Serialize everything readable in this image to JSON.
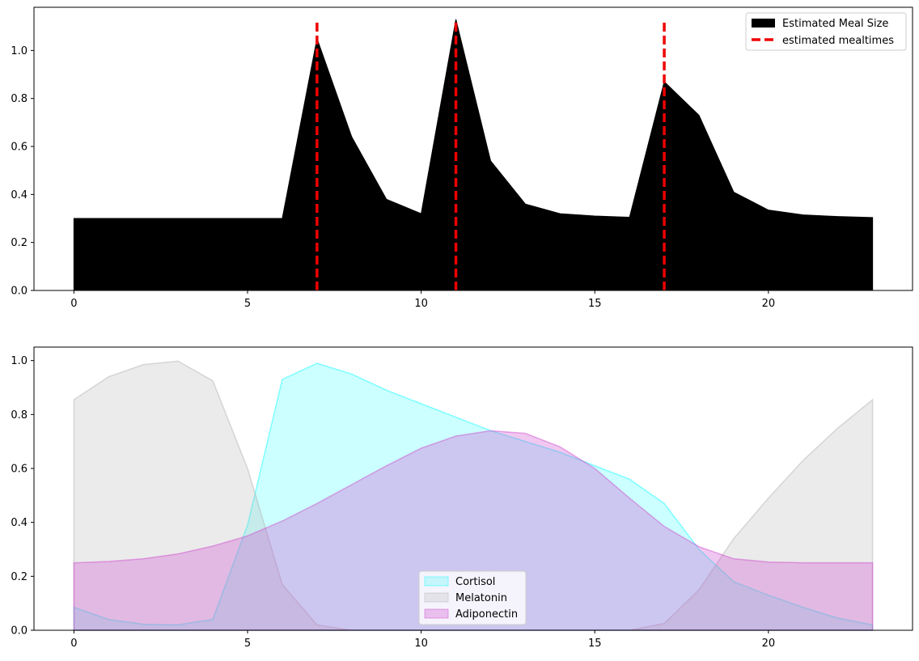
{
  "chart_data": [
    {
      "type": "area",
      "title": "",
      "xlabel": "",
      "ylabel": "",
      "xlim": [
        -1.15,
        24.15
      ],
      "ylim": [
        0,
        1.18
      ],
      "xticks": [
        0,
        5,
        10,
        15,
        20
      ],
      "yticks": [
        0.0,
        0.2,
        0.4,
        0.6,
        0.8,
        1.0
      ],
      "xtick_labels": [
        "0",
        "5",
        "10",
        "15",
        "20"
      ],
      "ytick_labels": [
        "0.0",
        "0.2",
        "0.4",
        "0.6",
        "0.8",
        "1.0"
      ],
      "legend_position": "top-right",
      "series": [
        {
          "name": "Estimated Meal Size",
          "color": "#000000",
          "x": [
            0,
            1,
            2,
            3,
            4,
            5,
            6,
            7,
            8,
            9,
            10,
            11,
            12,
            13,
            14,
            15,
            16,
            17,
            18,
            19,
            20,
            21,
            22,
            23
          ],
          "values": [
            0.3,
            0.3,
            0.3,
            0.3,
            0.3,
            0.3,
            0.3,
            1.05,
            0.64,
            0.38,
            0.32,
            1.13,
            0.54,
            0.36,
            0.32,
            0.31,
            0.305,
            0.87,
            0.73,
            0.41,
            0.335,
            0.315,
            0.308,
            0.304
          ]
        }
      ],
      "vlines": {
        "name": "estimated mealtimes",
        "color": "#ee0000",
        "style": "dashed",
        "x": [
          7,
          11,
          17
        ],
        "ymax": 1.12
      }
    },
    {
      "type": "area",
      "title": "",
      "xlabel": "",
      "ylabel": "",
      "xlim": [
        -1.15,
        24.15
      ],
      "ylim": [
        0,
        1.05
      ],
      "xticks": [
        0,
        5,
        10,
        15,
        20
      ],
      "yticks": [
        0.0,
        0.2,
        0.4,
        0.6,
        0.8,
        1.0
      ],
      "xtick_labels": [
        "0",
        "5",
        "10",
        "15",
        "20"
      ],
      "ytick_labels": [
        "0.0",
        "0.2",
        "0.4",
        "0.6",
        "0.8",
        "1.0"
      ],
      "legend_position": "lower-center",
      "series": [
        {
          "name": "Cortisol",
          "color": "#00ffff",
          "x": [
            0,
            1,
            2,
            3,
            4,
            5,
            6,
            7,
            8,
            9,
            10,
            11,
            12,
            13,
            14,
            15,
            16,
            17,
            18,
            19,
            20,
            21,
            22,
            23
          ],
          "values": [
            0.085,
            0.04,
            0.022,
            0.02,
            0.04,
            0.39,
            0.93,
            0.99,
            0.95,
            0.89,
            0.84,
            0.79,
            0.74,
            0.7,
            0.66,
            0.61,
            0.56,
            0.47,
            0.3,
            0.18,
            0.13,
            0.085,
            0.045,
            0.02
          ]
        },
        {
          "name": "Melatonin",
          "color": "#b0b0b0",
          "x": [
            0,
            1,
            2,
            3,
            4,
            5,
            6,
            7,
            8,
            9,
            10,
            11,
            12,
            13,
            14,
            15,
            16,
            17,
            18,
            19,
            20,
            21,
            22,
            23
          ],
          "values": [
            0.855,
            0.94,
            0.985,
            0.998,
            0.925,
            0.6,
            0.17,
            0.02,
            0.0,
            0.0,
            0.0,
            0.0,
            0.0,
            0.0,
            0.0,
            0.0,
            0.0,
            0.025,
            0.15,
            0.34,
            0.49,
            0.63,
            0.75,
            0.855
          ]
        },
        {
          "name": "Adiponectin",
          "color": "#cc44cc",
          "x": [
            0,
            1,
            2,
            3,
            4,
            5,
            6,
            7,
            8,
            9,
            10,
            11,
            12,
            13,
            14,
            15,
            16,
            17,
            18,
            19,
            20,
            21,
            22,
            23
          ],
          "values": [
            0.25,
            0.255,
            0.265,
            0.283,
            0.312,
            0.35,
            0.405,
            0.47,
            0.54,
            0.61,
            0.675,
            0.72,
            0.74,
            0.73,
            0.68,
            0.6,
            0.49,
            0.385,
            0.31,
            0.265,
            0.253,
            0.25,
            0.25,
            0.25
          ]
        }
      ]
    }
  ]
}
